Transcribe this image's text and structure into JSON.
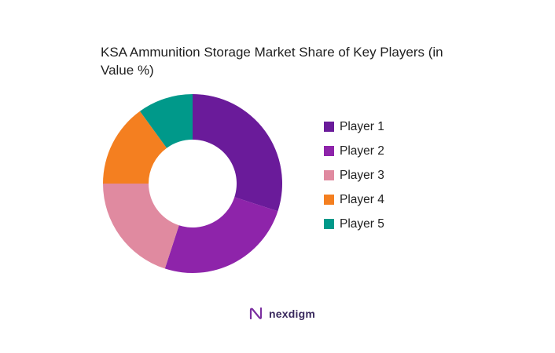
{
  "chart_data": {
    "type": "pie",
    "title": "KSA Ammunition Storage Market Share of Key Players (in Value %)",
    "categories": [
      "Player 1",
      "Player 2",
      "Player 3",
      "Player 4",
      "Player 5"
    ],
    "values": [
      30,
      25,
      20,
      15,
      10
    ],
    "colors": [
      "#6a1b9a",
      "#8e24aa",
      "#e08aa0",
      "#f47f20",
      "#00998a"
    ],
    "donut": true,
    "legend_position": "right"
  },
  "branding": {
    "logo_text": "nexdigm",
    "logo_icon": "nexdigm-logo-icon",
    "accent": "#7b2fa0"
  }
}
